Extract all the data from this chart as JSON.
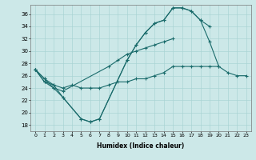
{
  "title": "",
  "xlabel": "Humidex (Indice chaleur)",
  "ylabel": "",
  "background_color": "#cce8e8",
  "grid_color": "#aad4d4",
  "line_color": "#1a6b6b",
  "xlim": [
    -0.5,
    23.5
  ],
  "ylim": [
    17,
    37.5
  ],
  "yticks": [
    18,
    20,
    22,
    24,
    26,
    28,
    30,
    32,
    34,
    36
  ],
  "xticks": [
    0,
    1,
    2,
    3,
    4,
    5,
    6,
    7,
    8,
    9,
    10,
    11,
    12,
    13,
    14,
    15,
    16,
    17,
    18,
    19,
    20,
    21,
    22,
    23
  ],
  "series": [
    [
      27.0,
      25.5,
      24.5,
      22.5,
      null,
      19.0,
      18.5,
      19.0,
      null,
      null,
      28.5,
      31.0,
      33.0,
      34.5,
      35.0,
      37.0,
      37.0,
      36.5,
      35.0,
      34.0,
      null,
      null,
      null,
      null
    ],
    [
      27.0,
      25.5,
      24.0,
      22.5,
      null,
      19.0,
      18.5,
      19.0,
      null,
      null,
      28.5,
      31.0,
      33.0,
      34.5,
      35.0,
      37.0,
      37.0,
      36.5,
      35.0,
      31.5,
      27.5,
      null,
      null,
      null
    ],
    [
      27.0,
      25.0,
      24.0,
      23.5,
      null,
      null,
      null,
      null,
      27.5,
      28.5,
      29.5,
      30.0,
      30.5,
      31.0,
      31.5,
      32.0,
      null,
      null,
      null,
      null,
      null,
      null,
      null,
      null
    ],
    [
      27.0,
      25.0,
      24.5,
      24.0,
      24.5,
      24.0,
      24.0,
      24.0,
      24.5,
      25.0,
      25.0,
      25.5,
      25.5,
      26.0,
      26.5,
      27.5,
      27.5,
      27.5,
      27.5,
      27.5,
      27.5,
      26.5,
      26.0,
      26.0
    ]
  ]
}
